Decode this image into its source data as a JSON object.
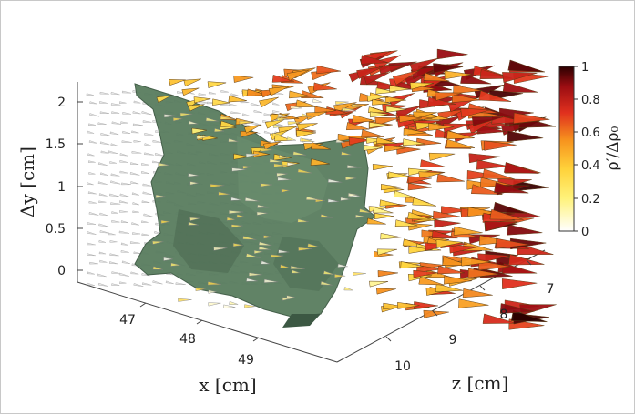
{
  "chart_data": {
    "type": "3d-vector-field",
    "x_axis": {
      "label": "x [cm]",
      "ticks": [
        "47",
        "48",
        "49"
      ]
    },
    "y_axis": {
      "label": "Δy [cm]",
      "ticks": [
        "0",
        "0.5",
        "1",
        "1.5",
        "2"
      ]
    },
    "z_axis": {
      "label": "z [cm]",
      "ticks": [
        "7",
        "8",
        "9",
        "10"
      ]
    },
    "colorbar": {
      "label": "ρ′/Δρ₀",
      "ticks": [
        "0",
        "0.2",
        "0.4",
        "0.6",
        "0.8",
        "1"
      ],
      "range": [
        0,
        1
      ],
      "colormap": [
        "#ffffff",
        "#fff27a",
        "#ffd23a",
        "#f7941e",
        "#e0301e",
        "#9b0d12",
        "#2a0000"
      ]
    },
    "isosurface_color": "#5c7f62",
    "grid": false
  }
}
